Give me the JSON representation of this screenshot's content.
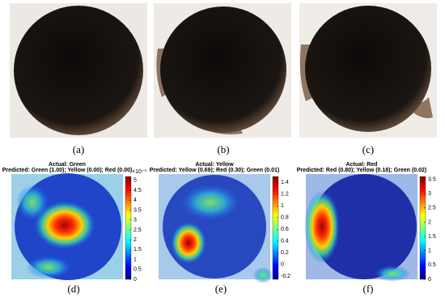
{
  "photos": [
    {
      "label": "(a)"
    },
    {
      "label": "(b)"
    },
    {
      "label": "(c)"
    }
  ],
  "heatmaps": [
    {
      "title": "Actual: Green",
      "subtitle": "Predicted: Green (1.00); Yellow (0.00); Red (0.00)",
      "label": "(d)",
      "colorbar": {
        "lim": [
          0,
          5.2
        ],
        "ticks": [
          0,
          0.5,
          1,
          1.5,
          2,
          2.5,
          3,
          3.5,
          4,
          4.5,
          5
        ],
        "exponent": "×10⁻³"
      }
    },
    {
      "title": "Actual: Yellow",
      "subtitle": "Predicted: Yellow (0.69); Red (0.30); Green (0.01)",
      "label": "(e)",
      "colorbar": {
        "lim": [
          -0.25,
          1.5
        ],
        "ticks": [
          -0.2,
          0,
          0.2,
          0.4,
          0.6,
          0.8,
          1,
          1.2,
          1.4
        ]
      }
    },
    {
      "title": "Actual: Red",
      "subtitle": "Predicted: Red (0.80); Yellow (0.18); Green (0.02)",
      "label": "(f)",
      "colorbar": {
        "lim": [
          0,
          3.6
        ],
        "ticks": [
          0,
          0.5,
          1,
          1.5,
          2,
          2.5,
          3,
          3.5
        ]
      }
    }
  ]
}
